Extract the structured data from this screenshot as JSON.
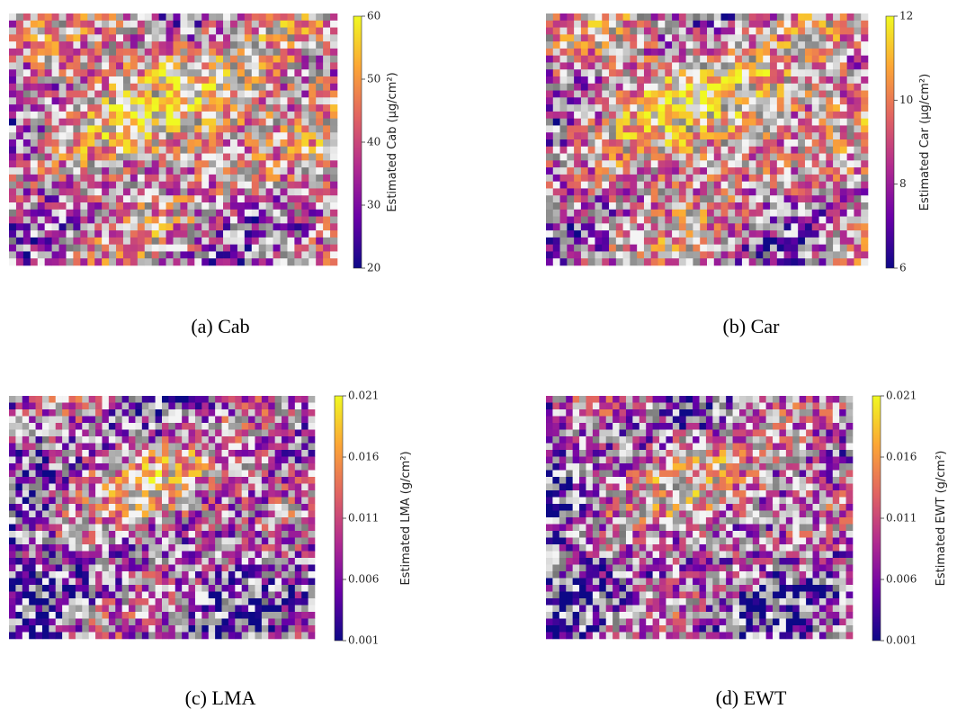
{
  "chart_data": [
    {
      "type": "heatmap",
      "caption": "(a) Cab",
      "colorbar_label": "Estimated Cab (μg/cm²)",
      "colormap": "plasma",
      "clim": [
        20,
        60
      ],
      "cticks": [
        20,
        30,
        40,
        50,
        60
      ]
    },
    {
      "type": "heatmap",
      "caption": "(b) Car",
      "colorbar_label": "Estimated Car (μg/cm²)",
      "colormap": "plasma",
      "clim": [
        6,
        12
      ],
      "cticks": [
        6,
        8,
        10,
        12
      ]
    },
    {
      "type": "heatmap",
      "caption": "(c) LMA",
      "colorbar_label": "Estimated LMA (g/cm²)",
      "colormap": "plasma",
      "clim": [
        0.001,
        0.021
      ],
      "cticks": [
        0.001,
        0.006,
        0.011,
        0.016,
        0.021
      ]
    },
    {
      "type": "heatmap",
      "caption": "(d) EWT",
      "colorbar_label": "Estimated EWT (g/cm²)",
      "colormap": "plasma",
      "clim": [
        0.001,
        0.021
      ],
      "cticks": [
        0.001,
        0.006,
        0.011,
        0.016,
        0.021
      ]
    }
  ]
}
